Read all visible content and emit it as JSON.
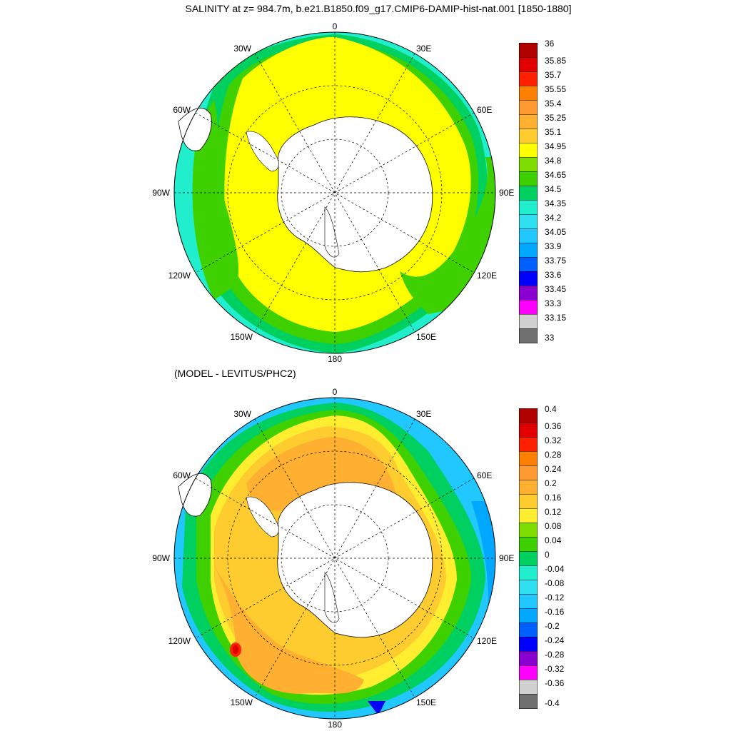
{
  "title": "SALINITY at z= 984.7m, b.e21.B1850.f09_g17.CMIP6-DAMIP-hist-nat.001 [1850-1880]",
  "subtitle": "(MODEL - LEVITUS/PHC2)",
  "lon_labels": {
    "top": "0",
    "ne": "30E",
    "e60": "60E",
    "e90": "90E",
    "e120": "120E",
    "e150": "150E",
    "bottom": "180",
    "w150": "150W",
    "w120": "120W",
    "w90": "90W",
    "w60": "60W",
    "nw": "30W"
  },
  "colorbar_top": {
    "labels": [
      "36",
      "35.85",
      "35.7",
      "35.55",
      "35.4",
      "35.25",
      "35.1",
      "34.95",
      "34.8",
      "34.65",
      "34.5",
      "34.35",
      "34.2",
      "34.05",
      "33.9",
      "33.75",
      "33.6",
      "33.45",
      "33.3",
      "33.15",
      "33"
    ],
    "colors": [
      "#b00000",
      "#e00000",
      "#ff2000",
      "#ff8000",
      "#ff9a30",
      "#ffb030",
      "#ffcc30",
      "#ffff00",
      "#7fdd00",
      "#3fd000",
      "#00d060",
      "#20eecc",
      "#30e0f0",
      "#20c8ff",
      "#00a8ff",
      "#0060ff",
      "#0000ff",
      "#8a00d0",
      "#ff00ff",
      "#d0d0d0",
      "#707070"
    ]
  },
  "colorbar_bottom": {
    "labels": [
      "0.4",
      "0.36",
      "0.32",
      "0.28",
      "0.24",
      "0.2",
      "0.16",
      "0.12",
      "0.08",
      "0.04",
      "0",
      "-0.04",
      "-0.08",
      "-0.12",
      "-0.16",
      "-0.2",
      "-0.24",
      "-0.28",
      "-0.32",
      "-0.36",
      "-0.4"
    ],
    "colors": [
      "#b00000",
      "#e00000",
      "#ff2000",
      "#ff8000",
      "#ff9a30",
      "#ffb030",
      "#ffcc30",
      "#ffee30",
      "#7fdd00",
      "#3fd000",
      "#00d060",
      "#20eecc",
      "#30e0f0",
      "#20c8ff",
      "#00a8ff",
      "#0060ff",
      "#0000ff",
      "#8a00d0",
      "#ff00ff",
      "#d0d0d0",
      "#707070"
    ]
  },
  "colors": {
    "land": "#ffffff",
    "outline": "#000000"
  }
}
